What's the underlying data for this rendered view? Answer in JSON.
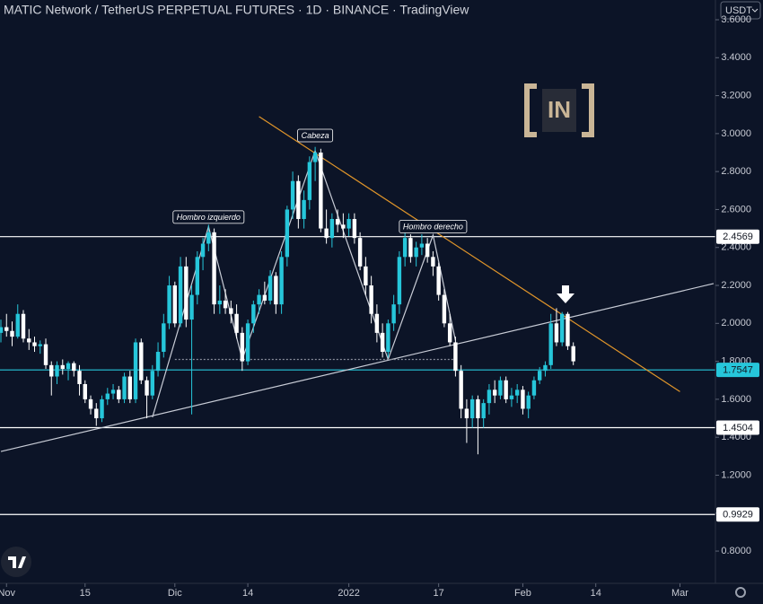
{
  "chart_data": {
    "type": "candlestick",
    "title": "MATIC Network / TetherUS PERPETUAL FUTURES · 1D · BINANCE · TradingView",
    "currency": "USDT",
    "watermark": "IN",
    "up_color": "#26c6da",
    "down_color": "#ffffff",
    "xlim": [
      "2021-10-31",
      "2022-03-07"
    ],
    "ylim": [
      0.63,
      3.704
    ],
    "xticks": [
      {
        "value": "2021-11-01",
        "label": "Nov"
      },
      {
        "value": "2021-11-15",
        "label": "15"
      },
      {
        "value": "2021-12-01",
        "label": "Dic"
      },
      {
        "value": "2021-12-14",
        "label": "14"
      },
      {
        "value": "2022-01-01",
        "label": "2022"
      },
      {
        "value": "2022-01-17",
        "label": "17"
      },
      {
        "value": "2022-02-01",
        "label": "Feb"
      },
      {
        "value": "2022-02-14",
        "label": "14"
      },
      {
        "value": "2022-03-01",
        "label": "Mar"
      }
    ],
    "yticks": [
      {
        "value": 0.8,
        "label": "0.8000"
      },
      {
        "value": 1.0,
        "label": "1.0000"
      },
      {
        "value": 1.2,
        "label": "1.2000"
      },
      {
        "value": 1.4,
        "label": "1.4000"
      },
      {
        "value": 1.6,
        "label": "1.6000"
      },
      {
        "value": 1.8,
        "label": "1.8000"
      },
      {
        "value": 2.0,
        "label": "2.0000"
      },
      {
        "value": 2.2,
        "label": "2.2000"
      },
      {
        "value": 2.4,
        "label": "2.4000"
      },
      {
        "value": 2.6,
        "label": "2.6000"
      },
      {
        "value": 2.8,
        "label": "2.8000"
      },
      {
        "value": 3.0,
        "label": "3.0000"
      },
      {
        "value": 3.2,
        "label": "3.2000"
      },
      {
        "value": 3.4,
        "label": "3.4000"
      },
      {
        "value": 3.6,
        "label": "3.6000"
      }
    ],
    "x": [
      "2021-10-31",
      "2021-11-01",
      "2021-11-02",
      "2021-11-03",
      "2021-11-04",
      "2021-11-05",
      "2021-11-06",
      "2021-11-07",
      "2021-11-08",
      "2021-11-09",
      "2021-11-10",
      "2021-11-11",
      "2021-11-12",
      "2021-11-13",
      "2021-11-14",
      "2021-11-15",
      "2021-11-16",
      "2021-11-17",
      "2021-11-18",
      "2021-11-19",
      "2021-11-20",
      "2021-11-21",
      "2021-11-22",
      "2021-11-23",
      "2021-11-24",
      "2021-11-25",
      "2021-11-26",
      "2021-11-27",
      "2021-11-28",
      "2021-11-29",
      "2021-11-30",
      "2021-12-01",
      "2021-12-02",
      "2021-12-03",
      "2021-12-04",
      "2021-12-05",
      "2021-12-06",
      "2021-12-07",
      "2021-12-08",
      "2021-12-09",
      "2021-12-10",
      "2021-12-11",
      "2021-12-12",
      "2021-12-13",
      "2021-12-14",
      "2021-12-15",
      "2021-12-16",
      "2021-12-17",
      "2021-12-18",
      "2021-12-19",
      "2021-12-20",
      "2021-12-21",
      "2021-12-22",
      "2021-12-23",
      "2021-12-24",
      "2021-12-25",
      "2021-12-26",
      "2021-12-27",
      "2021-12-28",
      "2021-12-29",
      "2021-12-30",
      "2021-12-31",
      "2022-01-01",
      "2022-01-02",
      "2022-01-03",
      "2022-01-04",
      "2022-01-05",
      "2022-01-06",
      "2022-01-07",
      "2022-01-08",
      "2022-01-09",
      "2022-01-10",
      "2022-01-11",
      "2022-01-12",
      "2022-01-13",
      "2022-01-14",
      "2022-01-15",
      "2022-01-16",
      "2022-01-17",
      "2022-01-18",
      "2022-01-19",
      "2022-01-20",
      "2022-01-21",
      "2022-01-22",
      "2022-01-23",
      "2022-01-24",
      "2022-01-25",
      "2022-01-26",
      "2022-01-27",
      "2022-01-28",
      "2022-01-29",
      "2022-01-30",
      "2022-01-31",
      "2022-02-01",
      "2022-02-02",
      "2022-02-03",
      "2022-02-04",
      "2022-02-05",
      "2022-02-06",
      "2022-02-07",
      "2022-02-08",
      "2022-02-09",
      "2022-02-10"
    ],
    "candles": [
      [
        1.95,
        2.02,
        1.9,
        1.98
      ],
      [
        1.98,
        2.05,
        1.93,
        1.96
      ],
      [
        1.96,
        2.01,
        1.88,
        1.93
      ],
      [
        1.93,
        2.1,
        1.92,
        2.05
      ],
      [
        2.05,
        2.07,
        1.9,
        1.92
      ],
      [
        1.92,
        1.97,
        1.86,
        1.9
      ],
      [
        1.9,
        1.93,
        1.85,
        1.88
      ],
      [
        1.88,
        1.91,
        1.84,
        1.89
      ],
      [
        1.89,
        1.92,
        1.76,
        1.78
      ],
      [
        1.78,
        1.8,
        1.62,
        1.72
      ],
      [
        1.72,
        1.8,
        1.68,
        1.78
      ],
      [
        1.78,
        1.81,
        1.73,
        1.76
      ],
      [
        1.76,
        1.8,
        1.7,
        1.79
      ],
      [
        1.79,
        1.8,
        1.72,
        1.75
      ],
      [
        1.75,
        1.78,
        1.62,
        1.68
      ],
      [
        1.68,
        1.7,
        1.58,
        1.6
      ],
      [
        1.6,
        1.62,
        1.52,
        1.55
      ],
      [
        1.55,
        1.58,
        1.46,
        1.5
      ],
      [
        1.5,
        1.62,
        1.48,
        1.6
      ],
      [
        1.6,
        1.66,
        1.57,
        1.63
      ],
      [
        1.63,
        1.68,
        1.6,
        1.65
      ],
      [
        1.65,
        1.67,
        1.58,
        1.6
      ],
      [
        1.6,
        1.74,
        1.58,
        1.72
      ],
      [
        1.72,
        1.75,
        1.58,
        1.6
      ],
      [
        1.6,
        1.92,
        1.58,
        1.9
      ],
      [
        1.9,
        1.92,
        1.68,
        1.7
      ],
      [
        1.7,
        1.72,
        1.5,
        1.62
      ],
      [
        1.62,
        1.78,
        1.6,
        1.75
      ],
      [
        1.75,
        1.9,
        1.72,
        1.85
      ],
      [
        1.85,
        2.05,
        1.82,
        2.0
      ],
      [
        2.0,
        2.25,
        1.97,
        2.2
      ],
      [
        2.2,
        2.22,
        1.98,
        2.0
      ],
      [
        2.0,
        2.35,
        1.98,
        2.3
      ],
      [
        2.3,
        2.35,
        1.98,
        2.02
      ],
      [
        2.02,
        2.2,
        1.52,
        2.15
      ],
      [
        2.15,
        2.38,
        2.1,
        2.35
      ],
      [
        2.35,
        2.45,
        2.28,
        2.42
      ],
      [
        2.42,
        2.52,
        2.38,
        2.48
      ],
      [
        2.48,
        2.5,
        2.05,
        2.1
      ],
      [
        2.1,
        2.2,
        2.05,
        2.12
      ],
      [
        2.12,
        2.18,
        2.05,
        2.08
      ],
      [
        2.08,
        2.12,
        2.0,
        2.05
      ],
      [
        2.05,
        2.1,
        1.92,
        1.95
      ],
      [
        1.95,
        1.98,
        1.75,
        1.8
      ],
      [
        1.8,
        2.02,
        1.78,
        2.0
      ],
      [
        2.0,
        2.12,
        1.95,
        2.1
      ],
      [
        2.1,
        2.18,
        2.05,
        2.15
      ],
      [
        2.15,
        2.22,
        2.1,
        2.12
      ],
      [
        2.12,
        2.28,
        2.1,
        2.25
      ],
      [
        2.25,
        2.27,
        2.05,
        2.1
      ],
      [
        2.1,
        2.38,
        2.05,
        2.35
      ],
      [
        2.35,
        2.62,
        2.3,
        2.6
      ],
      [
        2.6,
        2.8,
        2.55,
        2.75
      ],
      [
        2.75,
        2.78,
        2.5,
        2.55
      ],
      [
        2.55,
        2.7,
        2.5,
        2.65
      ],
      [
        2.65,
        2.88,
        2.6,
        2.85
      ],
      [
        2.85,
        2.93,
        2.75,
        2.9
      ],
      [
        2.9,
        2.92,
        2.48,
        2.5
      ],
      [
        2.5,
        2.6,
        2.42,
        2.45
      ],
      [
        2.45,
        2.58,
        2.4,
        2.55
      ],
      [
        2.55,
        2.6,
        2.48,
        2.52
      ],
      [
        2.52,
        2.58,
        2.45,
        2.5
      ],
      [
        2.5,
        2.58,
        2.46,
        2.55
      ],
      [
        2.55,
        2.58,
        2.42,
        2.45
      ],
      [
        2.45,
        2.48,
        2.28,
        2.3
      ],
      [
        2.3,
        2.35,
        2.15,
        2.2
      ],
      [
        2.2,
        2.25,
        2.0,
        2.05
      ],
      [
        2.05,
        2.1,
        1.9,
        1.95
      ],
      [
        1.95,
        2.0,
        1.82,
        1.85
      ],
      [
        1.85,
        2.02,
        1.82,
        2.0
      ],
      [
        2.0,
        2.15,
        1.96,
        2.1
      ],
      [
        2.1,
        2.38,
        2.05,
        2.35
      ],
      [
        2.35,
        2.48,
        2.3,
        2.45
      ],
      [
        2.45,
        2.47,
        2.32,
        2.35
      ],
      [
        2.35,
        2.43,
        2.3,
        2.4
      ],
      [
        2.4,
        2.47,
        2.36,
        2.42
      ],
      [
        2.42,
        2.45,
        2.32,
        2.35
      ],
      [
        2.35,
        2.38,
        2.25,
        2.3
      ],
      [
        2.3,
        2.32,
        2.12,
        2.15
      ],
      [
        2.15,
        2.18,
        1.98,
        2.0
      ],
      [
        2.0,
        2.05,
        1.88,
        1.9
      ],
      [
        1.9,
        1.93,
        1.72,
        1.75
      ],
      [
        1.75,
        1.78,
        1.5,
        1.55
      ],
      [
        1.55,
        1.6,
        1.37,
        1.5
      ],
      [
        1.5,
        1.62,
        1.45,
        1.6
      ],
      [
        1.6,
        1.62,
        1.31,
        1.5
      ],
      [
        1.5,
        1.6,
        1.45,
        1.58
      ],
      [
        1.58,
        1.68,
        1.52,
        1.65
      ],
      [
        1.65,
        1.7,
        1.58,
        1.62
      ],
      [
        1.62,
        1.72,
        1.6,
        1.7
      ],
      [
        1.7,
        1.72,
        1.58,
        1.6
      ],
      [
        1.6,
        1.66,
        1.56,
        1.62
      ],
      [
        1.62,
        1.68,
        1.58,
        1.65
      ],
      [
        1.65,
        1.67,
        1.52,
        1.55
      ],
      [
        1.55,
        1.64,
        1.5,
        1.62
      ],
      [
        1.62,
        1.72,
        1.6,
        1.7
      ],
      [
        1.7,
        1.77,
        1.68,
        1.75
      ],
      [
        1.75,
        1.8,
        1.72,
        1.78
      ],
      [
        1.78,
        2.05,
        1.76,
        2.0
      ],
      [
        2.0,
        2.08,
        1.88,
        1.9
      ],
      [
        1.9,
        2.06,
        1.88,
        2.05
      ],
      [
        2.05,
        2.06,
        1.86,
        1.88
      ],
      [
        1.88,
        1.9,
        1.78,
        1.8
      ]
    ],
    "levels": [
      {
        "value": 2.4569,
        "color": "#ffffff"
      },
      {
        "value": 1.7547,
        "color": "#26c6da"
      },
      {
        "value": 1.4504,
        "color": "#ffffff"
      },
      {
        "value": 0.9929,
        "color": "#ffffff"
      }
    ],
    "trendlines": [
      {
        "color": "#e0952a",
        "x": [
          "2021-12-16",
          "2022-03-01"
        ],
        "y": [
          3.09,
          1.64
        ]
      },
      {
        "color": "#c8ccd6",
        "x": [
          "2021-10-31",
          "2022-03-07"
        ],
        "y": [
          1.325,
          2.21
        ]
      },
      {
        "color": "#c8ccd6",
        "x": [
          "2021-11-27",
          "2021-12-07",
          "2021-12-13",
          "2021-12-26",
          "2022-01-08",
          "2022-01-16",
          "2022-01-20"
        ],
        "y": [
          1.505,
          2.51,
          1.81,
          2.91,
          1.81,
          2.465,
          1.91
        ]
      },
      {
        "color": "#8a8f9c",
        "style": "dotted",
        "x": [
          "2021-12-01",
          "2022-01-20"
        ],
        "y": [
          1.81,
          1.81
        ]
      }
    ],
    "annotations": [
      {
        "text": "Hombro izquierdo",
        "x": "2021-12-07",
        "y": 2.56
      },
      {
        "text": "Cabeza",
        "x": "2021-12-26",
        "y": 2.99
      },
      {
        "text": "Hombro derecho",
        "x": "2022-01-16",
        "y": 2.51
      }
    ]
  }
}
